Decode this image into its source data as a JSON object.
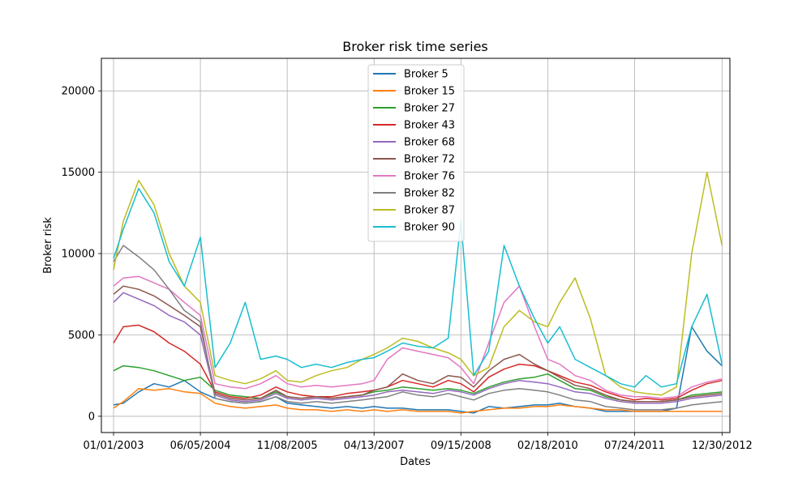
{
  "chart_data": {
    "type": "line",
    "title": "Broker risk time series",
    "xlabel": "Dates",
    "ylabel": "Broker risk",
    "xlim": [
      "2002-10-20",
      "2013-02-15"
    ],
    "ylim": [
      -1000,
      22000
    ],
    "x_ticks": [
      "01/01/2003",
      "06/05/2004",
      "11/08/2005",
      "04/13/2007",
      "09/15/2008",
      "02/18/2010",
      "07/24/2011",
      "12/30/2012"
    ],
    "y_ticks": [
      0,
      5000,
      10000,
      15000,
      20000
    ],
    "grid": true,
    "legend_position": "upper center",
    "dates": [
      "2003-01-01",
      "2003-03-01",
      "2003-06-01",
      "2003-09-01",
      "2003-12-01",
      "2004-03-01",
      "2004-06-05",
      "2004-09-01",
      "2004-12-01",
      "2005-03-01",
      "2005-06-01",
      "2005-09-01",
      "2005-11-08",
      "2006-02-01",
      "2006-05-01",
      "2006-08-01",
      "2006-11-01",
      "2007-02-01",
      "2007-04-13",
      "2007-07-01",
      "2007-10-01",
      "2008-01-01",
      "2008-04-01",
      "2008-07-01",
      "2008-09-15",
      "2008-12-01",
      "2009-03-01",
      "2009-06-01",
      "2009-09-01",
      "2009-12-01",
      "2010-02-18",
      "2010-05-01",
      "2010-08-01",
      "2010-11-01",
      "2011-02-01",
      "2011-05-01",
      "2011-07-24",
      "2011-10-01",
      "2012-01-01",
      "2012-04-01",
      "2012-07-01",
      "2012-10-01",
      "2012-12-30"
    ],
    "series": [
      {
        "name": "Broker 5",
        "color": "#1f77b4",
        "values": [
          700,
          800,
          1500,
          2000,
          1800,
          2200,
          1500,
          1100,
          900,
          800,
          900,
          1200,
          800,
          700,
          600,
          500,
          600,
          500,
          600,
          500,
          500,
          400,
          400,
          400,
          300,
          200,
          600,
          500,
          600,
          700,
          700,
          800,
          600,
          500,
          300,
          300,
          300,
          300,
          300,
          500,
          5500,
          4000,
          3100
        ]
      },
      {
        "name": "Broker 15",
        "color": "#ff7f0e",
        "values": [
          500,
          900,
          1700,
          1600,
          1700,
          1500,
          1400,
          800,
          600,
          500,
          600,
          700,
          500,
          400,
          400,
          300,
          400,
          300,
          400,
          300,
          400,
          300,
          300,
          300,
          200,
          300,
          400,
          500,
          500,
          600,
          600,
          700,
          600,
          500,
          400,
          400,
          300,
          300,
          300,
          300,
          300,
          300,
          300
        ]
      },
      {
        "name": "Broker 27",
        "color": "#2ca02c",
        "values": [
          2800,
          3100,
          3000,
          2800,
          2500,
          2200,
          2400,
          1600,
          1300,
          1200,
          1100,
          1500,
          1200,
          1100,
          1200,
          1100,
          1200,
          1300,
          1500,
          1600,
          1800,
          1700,
          1600,
          1700,
          1600,
          1400,
          1800,
          2100,
          2300,
          2400,
          2600,
          2200,
          1700,
          1600,
          1200,
          1000,
          900,
          900,
          900,
          1000,
          1300,
          1400,
          1500
        ]
      },
      {
        "name": "Broker 43",
        "color": "#d62728",
        "values": [
          4500,
          5500,
          5600,
          5200,
          4500,
          4000,
          3200,
          1500,
          1200,
          1100,
          1300,
          1800,
          1500,
          1300,
          1200,
          1200,
          1400,
          1500,
          1600,
          1800,
          2200,
          2000,
          1800,
          2200,
          2000,
          1500,
          2400,
          2900,
          3200,
          3100,
          2800,
          2500,
          2100,
          1900,
          1500,
          1200,
          1000,
          1100,
          1000,
          1100,
          1600,
          2000,
          2200
        ]
      },
      {
        "name": "Broker 68",
        "color": "#9467bd",
        "values": [
          7000,
          7600,
          7200,
          6800,
          6200,
          5800,
          5000,
          1300,
          1000,
          900,
          1000,
          1400,
          1100,
          1000,
          1100,
          1000,
          1100,
          1200,
          1300,
          1500,
          1600,
          1500,
          1400,
          1600,
          1500,
          1300,
          1700,
          2000,
          2200,
          2100,
          2000,
          1800,
          1500,
          1400,
          1100,
          900,
          800,
          800,
          800,
          900,
          1100,
          1200,
          1300
        ]
      },
      {
        "name": "Broker 72",
        "color": "#8c564b",
        "values": [
          7500,
          8000,
          7800,
          7400,
          6800,
          6200,
          5500,
          1400,
          1100,
          1000,
          1100,
          1600,
          1200,
          1100,
          1200,
          1100,
          1200,
          1300,
          1600,
          1800,
          2600,
          2200,
          2000,
          2500,
          2400,
          1800,
          2800,
          3500,
          3800,
          3200,
          2800,
          2400,
          1900,
          1700,
          1300,
          1000,
          900,
          900,
          900,
          1000,
          1200,
          1300,
          1400
        ]
      },
      {
        "name": "Broker 76",
        "color": "#e377c2",
        "values": [
          8000,
          8500,
          8600,
          8200,
          7800,
          7000,
          6200,
          2000,
          1800,
          1700,
          2000,
          2500,
          2000,
          1800,
          1900,
          1800,
          1900,
          2000,
          2200,
          3500,
          4200,
          4000,
          3800,
          3600,
          3000,
          2000,
          4500,
          7000,
          8000,
          5500,
          3500,
          3200,
          2500,
          2200,
          1600,
          1300,
          1200,
          1200,
          1100,
          1200,
          1800,
          2100,
          2300
        ]
      },
      {
        "name": "Broker 82",
        "color": "#7f7f7f",
        "values": [
          9500,
          10500,
          9800,
          9000,
          7800,
          6500,
          5800,
          1100,
          900,
          800,
          900,
          1200,
          900,
          800,
          900,
          800,
          900,
          1000,
          1100,
          1200,
          1500,
          1300,
          1200,
          1400,
          1200,
          1000,
          1400,
          1600,
          1700,
          1600,
          1500,
          1300,
          1000,
          900,
          600,
          500,
          400,
          400,
          400,
          500,
          700,
          800,
          900
        ]
      },
      {
        "name": "Broker 87",
        "color": "#bcbd22",
        "values": [
          9000,
          12000,
          14500,
          13000,
          10000,
          8000,
          7000,
          2500,
          2200,
          2000,
          2300,
          2800,
          2200,
          2100,
          2500,
          2800,
          3000,
          3500,
          3800,
          4200,
          4800,
          4600,
          4200,
          3900,
          3500,
          2500,
          3000,
          5500,
          6500,
          5800,
          5500,
          7000,
          8500,
          6000,
          2500,
          1800,
          1500,
          1400,
          1300,
          1800,
          10000,
          15000,
          10500
        ]
      },
      {
        "name": "Broker 90",
        "color": "#17becf",
        "values": [
          9700,
          11500,
          14000,
          12500,
          9500,
          8000,
          11000,
          3000,
          4500,
          7000,
          3500,
          3700,
          3500,
          3000,
          3200,
          3000,
          3300,
          3500,
          3600,
          4000,
          4500,
          4300,
          4200,
          4800,
          12000,
          2500,
          4000,
          10500,
          8000,
          6000,
          4500,
          5500,
          3500,
          3000,
          2500,
          2000,
          1800,
          2500,
          1800,
          2000,
          5500,
          7500,
          3200
        ]
      }
    ]
  }
}
